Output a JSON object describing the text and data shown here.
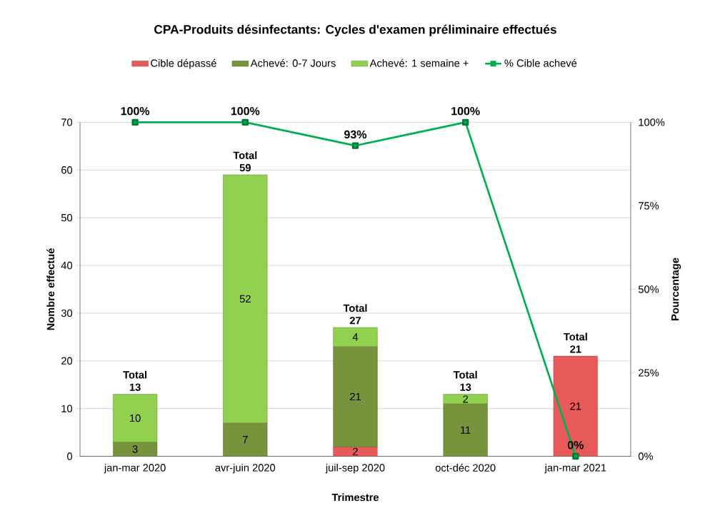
{
  "chart_data": {
    "type": "bar",
    "title": "CPA-Produits désinfectants:  Cycles d'examen préliminaire effectués",
    "xlabel": "Trimestre",
    "ylabel": "Nombre effectué",
    "y2label": "Pourcentage",
    "categories": [
      "jan-mar 2020",
      "avr-juin 2020",
      "juil-sep 2020",
      "oct-déc 2020",
      "jan-mar 2021"
    ],
    "stacked": true,
    "grid": "y",
    "legend": "top",
    "ylim": [
      0,
      70
    ],
    "yticks": [
      0,
      10,
      20,
      30,
      40,
      50,
      60,
      70
    ],
    "y2lim": [
      0,
      100
    ],
    "y2ticks": [
      {
        "value": 0,
        "label": "0%"
      },
      {
        "value": 25,
        "label": "25%"
      },
      {
        "value": 50,
        "label": "50%"
      },
      {
        "value": 75,
        "label": "75%"
      },
      {
        "value": 100,
        "label": "100%"
      }
    ],
    "totals": [
      "Total 13",
      "Total 59",
      "Total 27",
      "Total 13",
      "Total 21"
    ],
    "series": [
      {
        "name": "Cible dépassé",
        "color": "#e85a5a",
        "values": [
          null,
          null,
          2,
          null,
          21
        ],
        "value_labels": [
          null,
          null,
          "2",
          null,
          "21"
        ]
      },
      {
        "name": "Achevé: 0-7 Jours",
        "color": "#77933c",
        "values": [
          3,
          7,
          21,
          11,
          null
        ],
        "value_labels": [
          "3",
          "7",
          "21",
          "11",
          null
        ]
      },
      {
        "name": "Achevé: 1 semaine +",
        "color": "#92d050",
        "values": [
          10,
          52,
          4,
          2,
          null
        ],
        "value_labels": [
          "10",
          "52",
          "4",
          "2",
          null
        ]
      },
      {
        "name": "% Cible achevé",
        "type": "line",
        "axis": "y2",
        "marker": "square",
        "color": "#00b050",
        "values": [
          100,
          100,
          93,
          100,
          0
        ],
        "value_labels": [
          "100%",
          "100%",
          "93%",
          "100%",
          "0%"
        ]
      }
    ]
  }
}
